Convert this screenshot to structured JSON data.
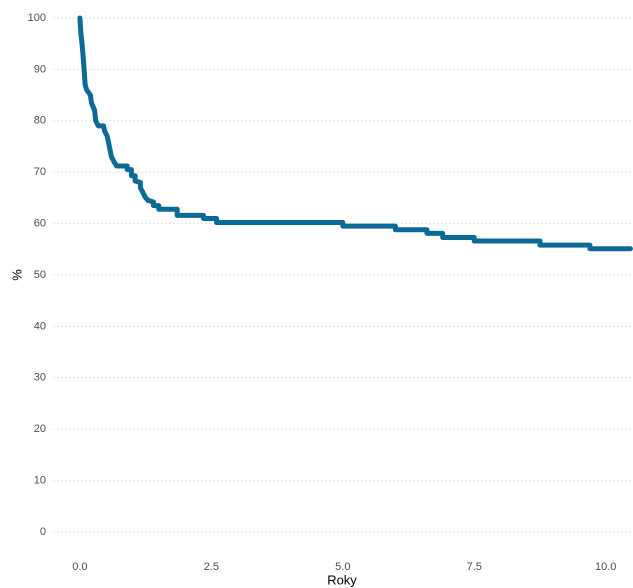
{
  "chart_data": {
    "type": "line",
    "x_label": "Roky",
    "y_label": "%",
    "x": [
      0,
      0.02,
      0.05,
      0.08,
      0.1,
      0.13,
      0.2,
      0.22,
      0.28,
      0.3,
      0.35,
      0.45,
      0.47,
      0.52,
      0.55,
      0.6,
      0.65,
      0.7,
      0.9,
      0.9,
      0.98,
      0.98,
      1.05,
      1.05,
      1.15,
      1.15,
      1.2,
      1.25,
      1.3,
      1.4,
      1.4,
      1.5,
      1.5,
      1.85,
      1.85,
      2.35,
      2.35,
      2.6,
      2.6,
      5.0,
      5.0,
      6.0,
      6.0,
      6.6,
      6.6,
      6.9,
      6.9,
      7.5,
      7.5,
      8.75,
      8.75,
      9.7,
      9.7,
      10.47
    ],
    "series": [
      {
        "color": "#0b6a96",
        "values": [
          100,
          97,
          94,
          90,
          87,
          86,
          85,
          83.5,
          82,
          80,
          79,
          79,
          78,
          77,
          75.5,
          73,
          72,
          71.2,
          71.2,
          70.5,
          70.5,
          69.3,
          69.3,
          68.3,
          68,
          67,
          66,
          65,
          64.5,
          64.2,
          63.5,
          63.5,
          62.8,
          62.8,
          61.6,
          61.6,
          61,
          61,
          60.2,
          60.2,
          59.5,
          59.5,
          58.8,
          58.8,
          58.1,
          58.1,
          57.3,
          57.3,
          56.6,
          56.6,
          55.8,
          55.8,
          55.1,
          55.1
        ]
      }
    ],
    "xlim": [
      -0.5,
      10.5
    ],
    "ylim": [
      -3,
      102
    ],
    "xticks": [
      {
        "value": 0,
        "label": "0.0"
      },
      2.5,
      {
        "value": 5,
        "label": "5.0"
      },
      7.5,
      {
        "value": 10,
        "label": "10.0"
      }
    ],
    "yticks": [
      0,
      10,
      20,
      30,
      40,
      50,
      60,
      70,
      80,
      90,
      100
    ],
    "grid": true
  }
}
